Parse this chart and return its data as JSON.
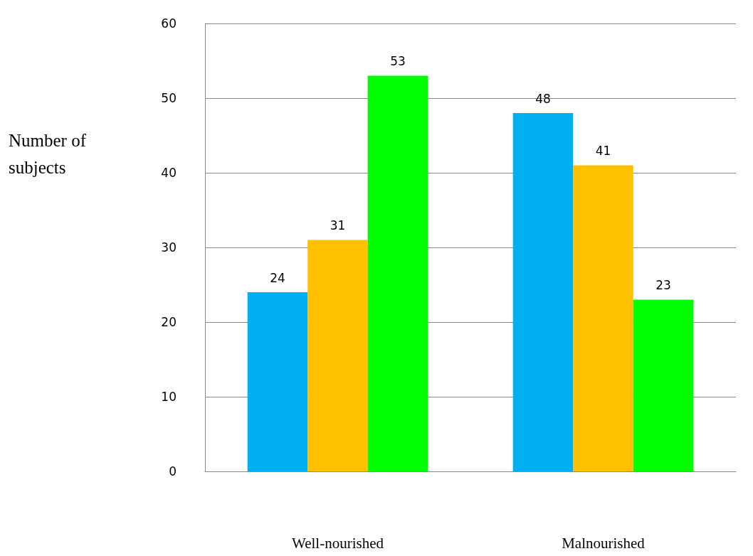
{
  "chart_data": {
    "type": "bar",
    "ylabel": "Number of subjects",
    "categories": [
      "Well-nourished",
      "Malnourished"
    ],
    "series": [
      {
        "color": "#00b0f0",
        "values": [
          24,
          48
        ]
      },
      {
        "color": "#ffc000",
        "values": [
          31,
          41
        ]
      },
      {
        "color": "#00ff00",
        "values": [
          53,
          23
        ]
      }
    ],
    "ylim": [
      0,
      60
    ],
    "yticks": [
      0,
      10,
      20,
      30,
      40,
      50,
      60
    ],
    "grid": "y",
    "data_labels": true
  }
}
